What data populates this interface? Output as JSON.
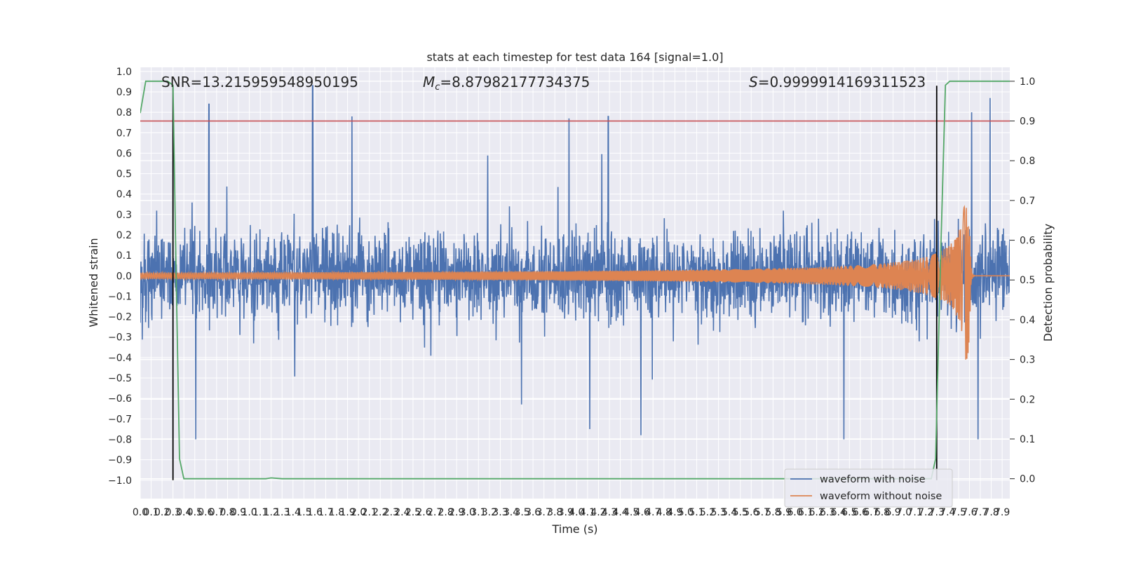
{
  "chart_data": {
    "type": "line",
    "title": "stats at each timestep for test data 164 [signal=1.0]",
    "xlabel": "Time (s)",
    "ylabel": "Whitened strain",
    "ylabel_right": "Detection probability",
    "xlim": [
      0.0,
      7.97
    ],
    "ylim": [
      -1.09,
      1.02
    ],
    "ylim_right": [
      -0.05,
      1.035
    ],
    "x_ticks": [
      "0.0",
      "0.1",
      "0.2",
      "0.3",
      "0.4",
      "0.5",
      "0.6",
      "0.7",
      "0.8",
      "0.9",
      "1.0",
      "1.1",
      "1.2",
      "1.3",
      "1.4",
      "1.5",
      "1.6",
      "1.7",
      "1.8",
      "1.9",
      "2.0",
      "2.1",
      "2.2",
      "2.3",
      "2.4",
      "2.5",
      "2.6",
      "2.7",
      "2.8",
      "2.9",
      "3.0",
      "3.1",
      "3.2",
      "3.3",
      "3.4",
      "3.5",
      "3.6",
      "3.7",
      "3.8",
      "3.9",
      "4.0",
      "4.1",
      "4.2",
      "4.3",
      "4.4",
      "4.5",
      "4.6",
      "4.7",
      "4.8",
      "4.9",
      "5.0",
      "5.1",
      "5.2",
      "5.3",
      "5.4",
      "5.5",
      "5.6",
      "5.7",
      "5.8",
      "5.9",
      "6.0",
      "6.1",
      "6.2",
      "6.3",
      "6.4",
      "6.5",
      "6.6",
      "6.7",
      "6.8",
      "6.9",
      "7.0",
      "7.1",
      "7.2",
      "7.3",
      "7.4",
      "7.5",
      "7.6",
      "7.7",
      "7.8",
      "7.9"
    ],
    "y_ticks": [
      "1.0",
      "0.9",
      "0.8",
      "0.7",
      "0.6",
      "0.5",
      "0.4",
      "0.3",
      "0.2",
      "0.1",
      "0.0",
      "−0.1",
      "−0.2",
      "−0.3",
      "−0.4",
      "−0.5",
      "−0.6",
      "−0.7",
      "−0.8",
      "−0.9",
      "−1.0"
    ],
    "y_ticks_right": [
      "1.0",
      "0.9",
      "0.8",
      "0.7",
      "0.6",
      "0.5",
      "0.4",
      "0.3",
      "0.2",
      "0.1",
      "0.0"
    ],
    "annotations": {
      "snr": "SNR=13.215959548950195",
      "mc_symbol": "M",
      "mc_sub": "c",
      "mc_value": "=8.87982177734375",
      "s_symbol": "S",
      "s_value": "=0.9999914169311523"
    },
    "threshold": {
      "axis": "right",
      "y": 0.9,
      "color": "#c44e52"
    },
    "vertical_markers": [
      {
        "x": 0.3,
        "y_range": [
          -1.0,
          0.93
        ]
      },
      {
        "x": 7.3,
        "y_range": [
          -1.0,
          0.93
        ]
      }
    ],
    "series": [
      {
        "name": "waveform with noise",
        "color": "#4c72b0",
        "noise_std": 0.18,
        "spikes": [
          [
            0.63,
            0.84
          ],
          [
            1.58,
            0.93
          ],
          [
            1.94,
            0.78
          ],
          [
            3.93,
            0.77
          ],
          [
            4.29,
            0.78
          ],
          [
            7.62,
            0.8
          ],
          [
            7.79,
            0.87
          ],
          [
            0.51,
            -0.8
          ],
          [
            4.12,
            -0.75
          ],
          [
            4.59,
            -0.78
          ],
          [
            6.45,
            -0.8
          ],
          [
            7.68,
            -0.8
          ]
        ]
      },
      {
        "name": "waveform without noise",
        "color": "#dd8452",
        "amp_base": 0.015,
        "merger_x": 7.6,
        "merger_peak": 0.41,
        "merger_trough": -0.38
      },
      {
        "name": "detection probability",
        "axis": "right",
        "color": "#55a868",
        "points": [
          [
            0.0,
            0.92
          ],
          [
            0.05,
            1.0
          ],
          [
            0.1,
            1.0
          ],
          [
            0.25,
            1.0
          ],
          [
            0.3,
            0.99
          ],
          [
            0.33,
            0.5
          ],
          [
            0.36,
            0.05
          ],
          [
            0.4,
            0.0
          ],
          [
            1.15,
            0.0
          ],
          [
            1.2,
            0.002
          ],
          [
            1.3,
            0.0
          ],
          [
            7.25,
            0.0
          ],
          [
            7.29,
            0.05
          ],
          [
            7.34,
            0.6
          ],
          [
            7.38,
            0.99
          ],
          [
            7.42,
            1.0
          ],
          [
            7.97,
            1.0
          ]
        ]
      }
    ],
    "legend": {
      "position": "lower-right",
      "items": [
        "waveform with noise",
        "waveform without noise"
      ]
    },
    "grid": true,
    "plot_bg": "#eaeaf2"
  }
}
